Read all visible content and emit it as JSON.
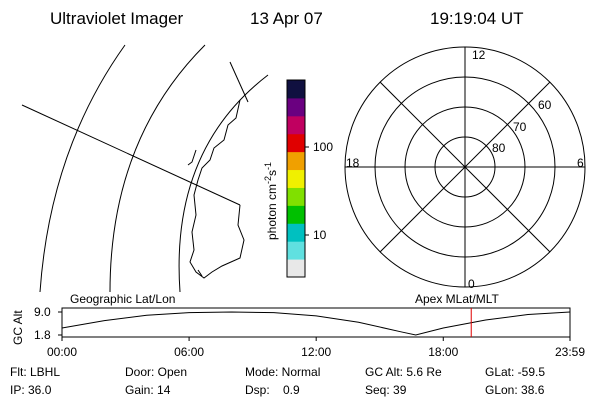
{
  "header": {
    "title": "Ultraviolet Imager",
    "date": "13 Apr 07",
    "time": "19:19:04 UT"
  },
  "colorbar": {
    "label": [
      "photon cm",
      "-2",
      "s",
      "-1"
    ],
    "ticks": [
      10,
      100
    ],
    "colors": [
      "#e8e8e8",
      "#60e0e0",
      "#00c0c0",
      "#00c000",
      "#80e000",
      "#f0f000",
      "#f0a000",
      "#e00000",
      "#c00060",
      "#6a0080",
      "#101040"
    ]
  },
  "polar": {
    "mlt_labels": [
      "12",
      "6",
      "0",
      "18"
    ],
    "lat_labels": [
      "60",
      "70",
      "80"
    ]
  },
  "altitude": {
    "axis_label": "GC Alt",
    "left_label": "Geographic Lat/Lon",
    "right_label": "Apex MLat/MLT",
    "yticks": [
      {
        "value": 9.0,
        "label": "9.0"
      },
      {
        "value": 1.8,
        "label": "1.8"
      }
    ],
    "ylim": [
      1.8,
      9.0
    ],
    "xlim": [
      0,
      23.983
    ],
    "xticks": [
      {
        "value": 0,
        "label": "00:00"
      },
      {
        "value": 6,
        "label": "06:00"
      },
      {
        "value": 12,
        "label": "12:00"
      },
      {
        "value": 18,
        "label": "18:00"
      },
      {
        "value": 23.983,
        "label": "23:59"
      }
    ],
    "x": [
      0,
      2,
      4,
      6,
      8,
      10,
      12,
      14,
      16,
      16.7,
      18,
      20,
      22,
      23.983
    ],
    "values": [
      4.0,
      6.3,
      8.0,
      8.8,
      9.0,
      8.8,
      7.8,
      5.8,
      2.8,
      1.8,
      4.0,
      6.5,
      8.2,
      9.0
    ],
    "marker_hour": 19.32,
    "marker_color": "#e00000"
  },
  "footer": {
    "rows": [
      [
        "Flt: LBHL",
        "Door: Open",
        "Mode: Normal",
        "GC Alt: 5.6 Re",
        "GLat: -59.5"
      ],
      [
        "IP: 36.0",
        "Gain: 14",
        "Dsp:    0.9",
        "Seq: 39",
        "GLon: 38.6"
      ]
    ]
  }
}
